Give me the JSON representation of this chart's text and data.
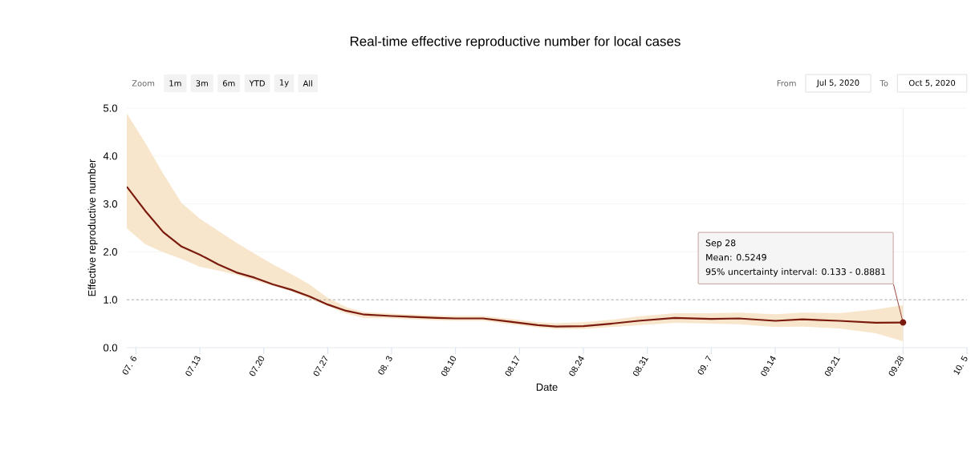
{
  "chart_data": {
    "type": "line",
    "title": "Real-time effective reproductive number for local cases",
    "xlabel": "Date",
    "ylabel": "Effective reproductive number",
    "series": [
      {
        "color": "#7b1a0e",
        "x": [
          "2020-07-05",
          "2020-07-07",
          "2020-07-09",
          "2020-07-11",
          "2020-07-13",
          "2020-07-15",
          "2020-07-17",
          "2020-07-19",
          "2020-07-21",
          "2020-07-23",
          "2020-07-25",
          "2020-07-27",
          "2020-07-29",
          "2020-07-31",
          "2020-08-03",
          "2020-08-08",
          "2020-08-10",
          "2020-08-13",
          "2020-08-16",
          "2020-08-19",
          "2020-08-21",
          "2020-08-24",
          "2020-08-27",
          "2020-08-30",
          "2020-09-03",
          "2020-09-07",
          "2020-09-10",
          "2020-09-14",
          "2020-09-17",
          "2020-09-21",
          "2020-09-25",
          "2020-09-28"
        ],
        "values": [
          3.36,
          2.86,
          2.41,
          2.11,
          1.94,
          1.74,
          1.57,
          1.46,
          1.32,
          1.21,
          1.07,
          0.9,
          0.77,
          0.69,
          0.66,
          0.62,
          0.61,
          0.61,
          0.54,
          0.47,
          0.44,
          0.45,
          0.5,
          0.56,
          0.62,
          0.6,
          0.61,
          0.56,
          0.59,
          0.56,
          0.52,
          0.5249
        ],
        "upper": [
          4.89,
          4.28,
          3.63,
          3.02,
          2.69,
          2.44,
          2.19,
          1.96,
          1.74,
          1.54,
          1.32,
          1.04,
          0.85,
          0.74,
          0.71,
          0.67,
          0.66,
          0.66,
          0.6,
          0.53,
          0.51,
          0.53,
          0.58,
          0.65,
          0.72,
          0.72,
          0.73,
          0.7,
          0.73,
          0.72,
          0.8,
          0.8881
        ],
        "lower": [
          2.49,
          2.16,
          1.99,
          1.85,
          1.69,
          1.61,
          1.52,
          1.4,
          1.29,
          1.18,
          1.02,
          0.87,
          0.71,
          0.62,
          0.61,
          0.57,
          0.56,
          0.56,
          0.49,
          0.42,
          0.39,
          0.39,
          0.43,
          0.47,
          0.52,
          0.5,
          0.49,
          0.43,
          0.44,
          0.4,
          0.3,
          0.133
        ]
      }
    ],
    "xlim": [
      "2020-07-05",
      "2020-10-05"
    ],
    "xticks": [
      {
        "value": "2020-07-06",
        "label": "07. 6"
      },
      {
        "value": "2020-07-13",
        "label": "07.13"
      },
      {
        "value": "2020-07-20",
        "label": "07.20"
      },
      {
        "value": "2020-07-27",
        "label": "07.27"
      },
      {
        "value": "2020-08-03",
        "label": "08. 3"
      },
      {
        "value": "2020-08-10",
        "label": "08.10"
      },
      {
        "value": "2020-08-17",
        "label": "08.17"
      },
      {
        "value": "2020-08-24",
        "label": "08.24"
      },
      {
        "value": "2020-08-31",
        "label": "08.31"
      },
      {
        "value": "2020-09-07",
        "label": "09. 7"
      },
      {
        "value": "2020-09-14",
        "label": "09.14"
      },
      {
        "value": "2020-09-21",
        "label": "09.21"
      },
      {
        "value": "2020-09-28",
        "label": "09.28"
      },
      {
        "value": "2020-10-05",
        "label": "10. 5"
      }
    ],
    "ylim": [
      0,
      5
    ],
    "yticks": [
      {
        "value": 0,
        "label": "0.0"
      },
      {
        "value": 1,
        "label": "1.0"
      },
      {
        "value": 2,
        "label": "2.0"
      },
      {
        "value": 3,
        "label": "3.0"
      },
      {
        "value": 4,
        "label": "4.0"
      },
      {
        "value": 5,
        "label": "5.0"
      }
    ],
    "grid": "y",
    "ref_lines": [
      {
        "axis": "y",
        "value": 1,
        "color": "#999999",
        "line_style": "dashed"
      },
      {
        "axis": "x",
        "value": "2020-09-28",
        "color": "#cccccc",
        "line_style": "solid"
      }
    ],
    "annotations": [
      "Zoom",
      "1m",
      "3m",
      "6m",
      "YTD",
      "1y",
      "All",
      "From",
      "Jul 5, 2020",
      "To",
      "Oct 5, 2020",
      "Sep 28",
      "Mean: 0.5249",
      {
        "text": "95% uncertainty interval: 0.133 - 0.8881",
        "x": "2020-09-28",
        "y": 0.5249
      }
    ]
  }
}
